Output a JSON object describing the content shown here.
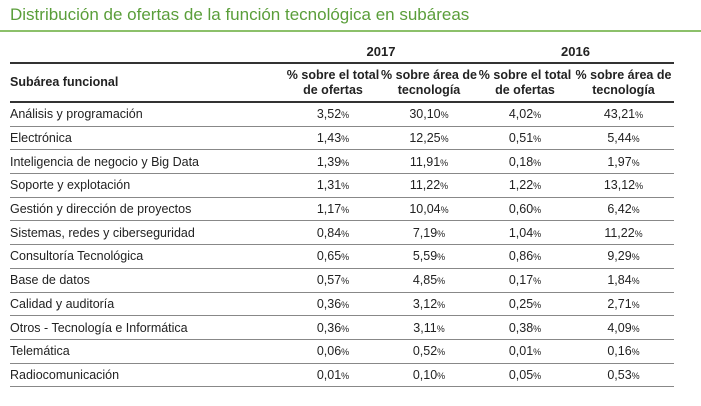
{
  "title": "Distribución de ofertas de la función tecnológica en subáreas",
  "years": [
    "2017",
    "2016"
  ],
  "headers": [
    "Subárea funcional",
    "% sobre el total de ofertas",
    "% sobre área de tecnología",
    "% sobre el total de ofertas",
    "% sobre área de tecnología"
  ],
  "rows": [
    {
      "label": "Análisis y programación",
      "v": [
        "3,52",
        "30,10",
        "4,02",
        "43,21"
      ]
    },
    {
      "label": "Electrónica",
      "v": [
        "1,43",
        "12,25",
        "0,51",
        "5,44"
      ]
    },
    {
      "label": "Inteligencia de negocio y Big Data",
      "v": [
        "1,39",
        "11,91",
        "0,18",
        "1,97"
      ]
    },
    {
      "label": "Soporte y explotación",
      "v": [
        "1,31",
        "11,22",
        "1,22",
        "13,12"
      ]
    },
    {
      "label": "Gestión y dirección de proyectos",
      "v": [
        "1,17",
        "10,04",
        "0,60",
        "6,42"
      ]
    },
    {
      "label": "Sistemas, redes y ciberseguridad",
      "v": [
        "0,84",
        "7,19",
        "1,04",
        "11,22"
      ]
    },
    {
      "label": "Consultoría Tecnológica",
      "v": [
        "0,65",
        "5,59",
        "0,86",
        "9,29"
      ]
    },
    {
      "label": "Base de datos",
      "v": [
        "0,57",
        "4,85",
        "0,17",
        "1,84"
      ]
    },
    {
      "label": "Calidad y auditoría",
      "v": [
        "0,36",
        "3,12",
        "0,25",
        "2,71"
      ]
    },
    {
      "label": "Otros - Tecnología e Informática",
      "v": [
        "0,36",
        "3,11",
        "0,38",
        "4,09"
      ]
    },
    {
      "label": "Telemática",
      "v": [
        "0,06",
        "0,52",
        "0,01",
        "0,16"
      ]
    },
    {
      "label": "Radiocomunicación",
      "v": [
        "0,01",
        "0,10",
        "0,05",
        "0,53"
      ]
    }
  ],
  "percent_sign": "%"
}
